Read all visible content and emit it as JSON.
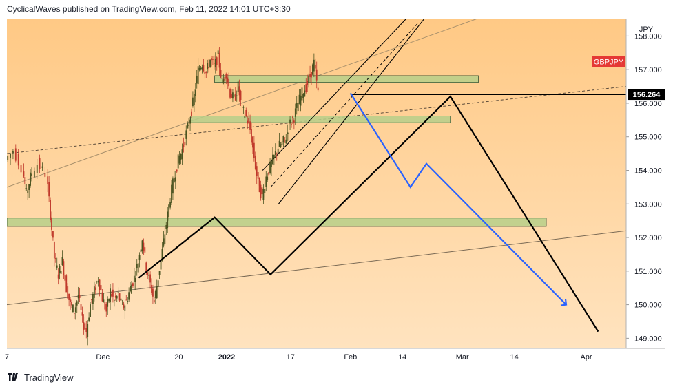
{
  "header": {
    "publisher": "CyclicalWaves",
    "published_text": "published on",
    "platform": "TradingView.com,",
    "timestamp": "Feb 11, 2022 14:01 UTC+3:30"
  },
  "footer": {
    "logo_icon": "tradingview-logo-icon",
    "brand": "TradingView"
  },
  "chart_data": {
    "type": "candlestick",
    "symbol": "GBPJPY",
    "currency": "JPY",
    "current_price": "156.264",
    "y_ticks": [
      "158.000",
      "157.000",
      "156.000",
      "155.000",
      "154.000",
      "153.000",
      "152.000",
      "151.000",
      "150.000",
      "149.000"
    ],
    "ylim": [
      148.7,
      158.5
    ],
    "x_ticks": [
      {
        "label": "7",
        "day": 0
      },
      {
        "label": "Dec",
        "day": 24
      },
      {
        "label": "20",
        "day": 43
      },
      {
        "label": "2022",
        "day": 55
      },
      {
        "label": "17",
        "day": 71
      },
      {
        "label": "Feb",
        "day": 86
      },
      {
        "label": "14",
        "day": 99
      },
      {
        "label": "Mar",
        "day": 114
      },
      {
        "label": "14",
        "day": 127
      },
      {
        "label": "Apr",
        "day": 145
      }
    ],
    "xlim_days": [
      0,
      155
    ],
    "colors": {
      "background": "#ffe0b2",
      "chart_bg_top": "#ffcc80",
      "zone_fill": "#b7cf8a",
      "black_projection": "#000000",
      "blue_projection": "#2962ff",
      "price_label": "#e53935",
      "candle_up": "#4b5320",
      "candle_down": "#c0392b"
    },
    "price_path": [
      [
        0,
        154.3
      ],
      [
        2,
        154.6
      ],
      [
        4,
        154.1
      ],
      [
        5,
        153.3
      ],
      [
        6,
        153.8
      ],
      [
        8,
        154.2
      ],
      [
        10,
        153.9
      ],
      [
        11,
        152.7
      ],
      [
        12,
        151.4
      ],
      [
        13,
        150.9
      ],
      [
        14,
        151.3
      ],
      [
        15,
        150.5
      ],
      [
        16,
        150.0
      ],
      [
        17,
        149.8
      ],
      [
        18,
        150.3
      ],
      [
        19,
        149.5
      ],
      [
        20,
        149.2
      ],
      [
        21,
        150.0
      ],
      [
        22,
        150.4
      ],
      [
        23,
        150.8
      ],
      [
        24,
        150.2
      ],
      [
        25,
        149.8
      ],
      [
        26,
        150.4
      ],
      [
        27,
        150.1
      ],
      [
        28,
        150.3
      ],
      [
        29,
        149.9
      ],
      [
        30,
        150.1
      ],
      [
        31,
        150.5
      ],
      [
        32,
        150.8
      ],
      [
        33,
        151.3
      ],
      [
        34,
        152.0
      ],
      [
        35,
        151.1
      ],
      [
        36,
        150.6
      ],
      [
        37,
        150.1
      ],
      [
        38,
        150.8
      ],
      [
        39,
        151.6
      ],
      [
        40,
        152.4
      ],
      [
        41,
        153.2
      ],
      [
        42,
        153.8
      ],
      [
        43,
        154.3
      ],
      [
        44,
        154.6
      ],
      [
        45,
        155.1
      ],
      [
        46,
        155.6
      ],
      [
        47,
        156.2
      ],
      [
        48,
        157.0
      ],
      [
        49,
        157.2
      ],
      [
        50,
        156.9
      ],
      [
        51,
        157.3
      ],
      [
        52,
        157.1
      ],
      [
        53,
        157.4
      ],
      [
        54,
        156.6
      ],
      [
        55,
        156.9
      ],
      [
        56,
        156.3
      ],
      [
        57,
        156.1
      ],
      [
        58,
        156.5
      ],
      [
        59,
        155.8
      ],
      [
        60,
        155.6
      ],
      [
        61,
        155.2
      ],
      [
        62,
        154.4
      ],
      [
        63,
        153.6
      ],
      [
        64,
        153.2
      ],
      [
        65,
        153.8
      ],
      [
        66,
        154.1
      ],
      [
        67,
        154.4
      ],
      [
        68,
        154.7
      ],
      [
        69,
        154.8
      ],
      [
        70,
        155.0
      ],
      [
        71,
        155.4
      ],
      [
        72,
        155.6
      ],
      [
        73,
        156.0
      ],
      [
        74,
        156.3
      ],
      [
        75,
        156.5
      ],
      [
        76,
        156.8
      ],
      [
        77,
        157.2
      ],
      [
        78,
        156.3
      ]
    ],
    "zones": [
      {
        "from_day": 52,
        "to_day": 118,
        "low": 156.62,
        "high": 156.82
      },
      {
        "from_day": 46,
        "to_day": 111,
        "low": 155.42,
        "high": 155.62
      },
      {
        "from_day": 0,
        "to_day": 135,
        "low": 152.33,
        "high": 152.58
      }
    ],
    "black_projection": [
      [
        33,
        150.8
      ],
      [
        52,
        152.6
      ],
      [
        66,
        150.9
      ],
      [
        111,
        156.2
      ],
      [
        148,
        149.2
      ]
    ],
    "blue_projection": [
      [
        86,
        156.3
      ],
      [
        101,
        153.5
      ],
      [
        105,
        154.2
      ],
      [
        140,
        150.0
      ]
    ],
    "blue_arrowhead": [
      140,
      150.0
    ],
    "price_level_line": {
      "from_day": 86,
      "to_day": 155,
      "price": 156.264
    }
  }
}
